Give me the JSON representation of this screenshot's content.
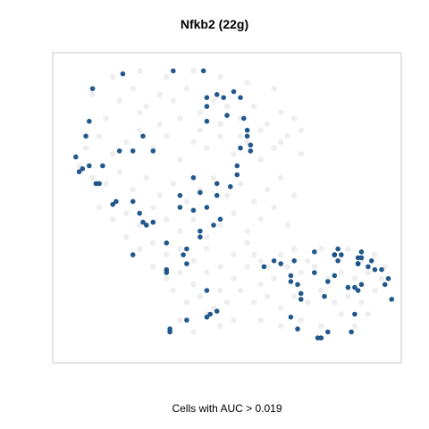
{
  "chart_data": {
    "type": "scatter",
    "title": "Nfkb2 (22g)",
    "xlabel": "Cells with AUC > 0.019",
    "ylabel": "",
    "grid": false,
    "legend": "none",
    "axes_ticks": false,
    "colors": {
      "background_cells": "#e8e8e8",
      "highlight_cells": "#174f86",
      "frame": "#c8c8c8"
    },
    "xlim": [
      0,
      100
    ],
    "ylim": [
      0,
      100
    ],
    "series": [
      {
        "role": "background",
        "points": [
          [
            10,
            88
          ],
          [
            14,
            80
          ],
          [
            18,
            86
          ],
          [
            22,
            90
          ],
          [
            26,
            84
          ],
          [
            30,
            88
          ],
          [
            34,
            86
          ],
          [
            38,
            90
          ],
          [
            42,
            82
          ],
          [
            46,
            86
          ],
          [
            50,
            84
          ],
          [
            54,
            80
          ],
          [
            58,
            84
          ],
          [
            62,
            78
          ],
          [
            66,
            82
          ],
          [
            70,
            80
          ],
          [
            8,
            70
          ],
          [
            12,
            74
          ],
          [
            16,
            68
          ],
          [
            20,
            72
          ],
          [
            24,
            76
          ],
          [
            28,
            70
          ],
          [
            32,
            74
          ],
          [
            36,
            66
          ],
          [
            40,
            72
          ],
          [
            44,
            70
          ],
          [
            48,
            74
          ],
          [
            52,
            68
          ],
          [
            56,
            72
          ],
          [
            60,
            66
          ],
          [
            64,
            70
          ],
          [
            68,
            74
          ],
          [
            72,
            68
          ],
          [
            6,
            64
          ],
          [
            10,
            60
          ],
          [
            14,
            58
          ],
          [
            18,
            62
          ],
          [
            22,
            56
          ],
          [
            26,
            60
          ],
          [
            30,
            54
          ],
          [
            34,
            58
          ],
          [
            38,
            52
          ],
          [
            42,
            56
          ],
          [
            46,
            60
          ],
          [
            50,
            54
          ],
          [
            54,
            58
          ],
          [
            58,
            52
          ],
          [
            62,
            56
          ],
          [
            66,
            60
          ],
          [
            70,
            54
          ],
          [
            12,
            50
          ],
          [
            16,
            46
          ],
          [
            20,
            48
          ],
          [
            24,
            44
          ],
          [
            28,
            50
          ],
          [
            32,
            46
          ],
          [
            36,
            42
          ],
          [
            40,
            46
          ],
          [
            44,
            40
          ],
          [
            48,
            44
          ],
          [
            52,
            48
          ],
          [
            56,
            42
          ],
          [
            60,
            46
          ],
          [
            64,
            50
          ],
          [
            68,
            44
          ],
          [
            20,
            40
          ],
          [
            24,
            36
          ],
          [
            28,
            38
          ],
          [
            32,
            34
          ],
          [
            36,
            36
          ],
          [
            40,
            32
          ],
          [
            44,
            36
          ],
          [
            48,
            30
          ],
          [
            52,
            34
          ],
          [
            56,
            38
          ],
          [
            60,
            32
          ],
          [
            28,
            30
          ],
          [
            32,
            26
          ],
          [
            36,
            28
          ],
          [
            40,
            24
          ],
          [
            44,
            28
          ],
          [
            48,
            22
          ],
          [
            52,
            26
          ],
          [
            56,
            30
          ],
          [
            60,
            24
          ],
          [
            64,
            26
          ],
          [
            68,
            30
          ],
          [
            72,
            28
          ],
          [
            76,
            30
          ],
          [
            80,
            26
          ],
          [
            84,
            28
          ],
          [
            88,
            26
          ],
          [
            92,
            28
          ],
          [
            96,
            26
          ],
          [
            34,
            22
          ],
          [
            38,
            18
          ],
          [
            42,
            20
          ],
          [
            46,
            16
          ],
          [
            50,
            18
          ],
          [
            54,
            22
          ],
          [
            58,
            18
          ],
          [
            62,
            20
          ],
          [
            66,
            16
          ],
          [
            70,
            20
          ],
          [
            74,
            18
          ],
          [
            78,
            22
          ],
          [
            82,
            18
          ],
          [
            86,
            20
          ],
          [
            90,
            18
          ],
          [
            94,
            22
          ],
          [
            36,
            12
          ],
          [
            40,
            8
          ],
          [
            44,
            14
          ],
          [
            48,
            10
          ],
          [
            52,
            12
          ],
          [
            60,
            12
          ],
          [
            66,
            10
          ],
          [
            72,
            12
          ],
          [
            78,
            10
          ],
          [
            84,
            14
          ],
          [
            88,
            10
          ],
          [
            92,
            14
          ],
          [
            58,
            34
          ],
          [
            62,
            30
          ],
          [
            66,
            34
          ],
          [
            70,
            36
          ],
          [
            74,
            32
          ],
          [
            78,
            36
          ],
          [
            82,
            34
          ],
          [
            86,
            36
          ],
          [
            90,
            32
          ],
          [
            94,
            34
          ],
          [
            97,
            30
          ],
          [
            24,
            82
          ],
          [
            30,
            78
          ],
          [
            36,
            80
          ],
          [
            42,
            76
          ],
          [
            48,
            78
          ],
          [
            54,
            74
          ],
          [
            60,
            76
          ],
          [
            66,
            72
          ],
          [
            72,
            76
          ],
          [
            16,
            94
          ],
          [
            24,
            96
          ],
          [
            32,
            94
          ],
          [
            40,
            96
          ],
          [
            48,
            94
          ],
          [
            56,
            92
          ],
          [
            64,
            90
          ]
        ]
      },
      {
        "role": "highlight",
        "points": [
          [
            10,
            90
          ],
          [
            19,
            95
          ],
          [
            34,
            96
          ],
          [
            9,
            79
          ],
          [
            8,
            74
          ],
          [
            5,
            67
          ],
          [
            7,
            63
          ],
          [
            9,
            64
          ],
          [
            13,
            64
          ],
          [
            6,
            62
          ],
          [
            18,
            69
          ],
          [
            22,
            69
          ],
          [
            25,
            74
          ],
          [
            28,
            69
          ],
          [
            43,
            96
          ],
          [
            44,
            87
          ],
          [
            44,
            84
          ],
          [
            44,
            79
          ],
          [
            47,
            88
          ],
          [
            49,
            87
          ],
          [
            52,
            89
          ],
          [
            54,
            87
          ],
          [
            50,
            81
          ],
          [
            55,
            80
          ],
          [
            56,
            76
          ],
          [
            56,
            74
          ],
          [
            57,
            71
          ],
          [
            54,
            70
          ],
          [
            57,
            69
          ],
          [
            53,
            64
          ],
          [
            53,
            61
          ],
          [
            51,
            57
          ],
          [
            47,
            58
          ],
          [
            47,
            54
          ],
          [
            40,
            60
          ],
          [
            36,
            54
          ],
          [
            42,
            55
          ],
          [
            36,
            50
          ],
          [
            40,
            49
          ],
          [
            44,
            50
          ],
          [
            46,
            44
          ],
          [
            48,
            46
          ],
          [
            42,
            42
          ],
          [
            42,
            40
          ],
          [
            38,
            36
          ],
          [
            37,
            34
          ],
          [
            28,
            45
          ],
          [
            26,
            44
          ],
          [
            25,
            45
          ],
          [
            24,
            48
          ],
          [
            22,
            52
          ],
          [
            17,
            52
          ],
          [
            12,
            58
          ],
          [
            11,
            58
          ],
          [
            16,
            51
          ],
          [
            22,
            34
          ],
          [
            32,
            38
          ],
          [
            38,
            31
          ],
          [
            44,
            22
          ],
          [
            45,
            14
          ],
          [
            47,
            15
          ],
          [
            44,
            13
          ],
          [
            38,
            12
          ],
          [
            33,
            8
          ],
          [
            33,
            9
          ],
          [
            32,
            28
          ],
          [
            32,
            29
          ],
          [
            64,
            32
          ],
          [
            61,
            30
          ],
          [
            66,
            31
          ],
          [
            69,
            27
          ],
          [
            70,
            32
          ],
          [
            69,
            25
          ],
          [
            71,
            24
          ],
          [
            76,
            35
          ],
          [
            76,
            28
          ],
          [
            82,
            34
          ],
          [
            82,
            34
          ],
          [
            83,
            36
          ],
          [
            84,
            34
          ],
          [
            83,
            32
          ],
          [
            89,
            33
          ],
          [
            90,
            35
          ],
          [
            90,
            33
          ],
          [
            89,
            31
          ],
          [
            80,
            25
          ],
          [
            79,
            20
          ],
          [
            82,
            27
          ],
          [
            72,
            19
          ],
          [
            72,
            21
          ],
          [
            69,
            13
          ],
          [
            71,
            9
          ],
          [
            78,
            6
          ],
          [
            77,
            6
          ],
          [
            80,
            8
          ],
          [
            88,
            14
          ],
          [
            92,
            30
          ],
          [
            94,
            29
          ],
          [
            98,
            26
          ],
          [
            89,
            31
          ],
          [
            93,
            32
          ],
          [
            96,
            29
          ],
          [
            97,
            24
          ],
          [
            99,
            19
          ],
          [
            86,
            23
          ],
          [
            88,
            23
          ],
          [
            90,
            24
          ],
          [
            89,
            22
          ],
          [
            87,
            8
          ]
        ]
      }
    ]
  }
}
